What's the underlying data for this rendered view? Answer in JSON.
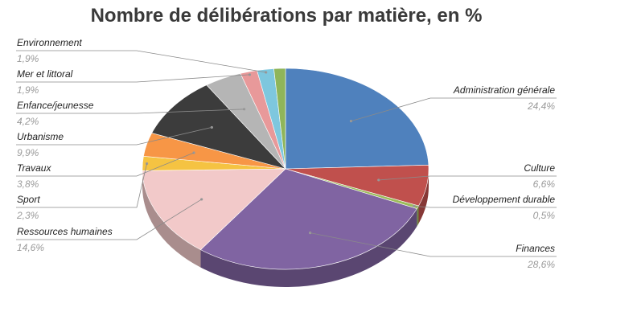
{
  "chart_data": {
    "type": "pie",
    "title": "Nombre de délibérations par matière, en %",
    "slices": [
      {
        "label": "Administration générale",
        "value": 24.4,
        "display": "24,4%",
        "color": "#4f81bd"
      },
      {
        "label": "Culture",
        "value": 6.6,
        "display": "6,6%",
        "color": "#c0504d"
      },
      {
        "label": "Développement durable",
        "value": 0.5,
        "display": "0,5%",
        "color": "#9bbb59"
      },
      {
        "label": "Finances",
        "value": 28.6,
        "display": "28,6%",
        "color": "#8064a2"
      },
      {
        "label": "Ressources humaines",
        "value": 14.6,
        "display": "14,6%",
        "color": "#f2c9c9"
      },
      {
        "label": "Sport",
        "value": 2.3,
        "display": "2,3%",
        "color": "#f5c342"
      },
      {
        "label": "Travaux",
        "value": 3.8,
        "display": "3,8%",
        "color": "#f79646"
      },
      {
        "label": "Urbanisme",
        "value": 9.9,
        "display": "9,9%",
        "color": "#3c3c3c"
      },
      {
        "label": "Enfance/jeunesse",
        "value": 4.2,
        "display": "4,2%",
        "color": "#b5b5b5"
      },
      {
        "label": "Mer et littoral",
        "value": 1.9,
        "display": "1,9%",
        "color": "#e8999a"
      },
      {
        "label": "Environnement",
        "value": 1.9,
        "display": "1,9%",
        "color": "#7ec7de"
      }
    ],
    "remainder_color": "#8fb55a",
    "legend": "callout-labels"
  }
}
